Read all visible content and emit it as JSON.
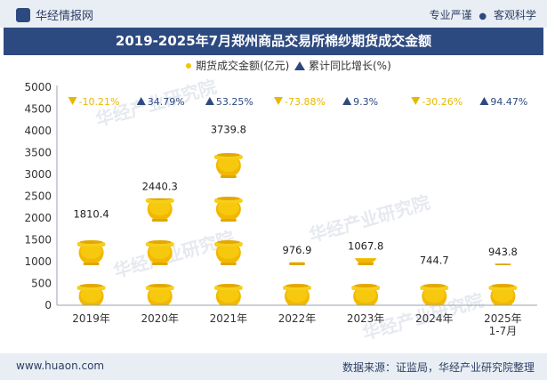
{
  "header": {
    "brand": "华经情报网",
    "tagline_left": "专业严谨",
    "tagline_right": "客观科学"
  },
  "footer": {
    "website": "www.huaon.com",
    "source": "数据来源：证监局，华经产业研究院整理"
  },
  "colors": {
    "bar_gold": "#f5c400",
    "growth_up": "#2d4a80",
    "growth_down": "#e8b800",
    "title_bg": "#2d4a80"
  },
  "chart_data": {
    "type": "bar",
    "title": "2019-2025年7月郑州商品交易所棉纱期货成交金额",
    "categories": [
      "2019年",
      "2020年",
      "2021年",
      "2022年",
      "2023年",
      "2024年",
      "2025年\n1-7月"
    ],
    "series": [
      {
        "name": "期货成交金额(亿元)",
        "values": [
          1810.4,
          2440.3,
          3739.8,
          976.9,
          1067.8,
          744.7,
          943.8
        ],
        "labels": [
          "1810.4",
          "2440.3",
          "3739.8",
          "976.9",
          "1067.8",
          "744.7",
          "943.8"
        ]
      },
      {
        "name": "累计同比增长(%)",
        "values": [
          -10.21,
          34.79,
          53.25,
          -73.88,
          9.3,
          -30.26,
          94.47
        ],
        "labels": [
          "-10.21%",
          "34.79%",
          "53.25%",
          "-73.88%",
          "9.3%",
          "-30.26%",
          "94.47%"
        ]
      }
    ],
    "ylim": [
      0,
      5000
    ],
    "yticks": [
      0,
      500,
      1000,
      1500,
      2000,
      2500,
      3000,
      3500,
      4000,
      4500,
      5000
    ],
    "unit_per_icon": 500,
    "legend": [
      "期货成交金额(亿元)",
      "累计同比增长(%)"
    ],
    "watermark": [
      "华经产业研究院",
      "www.huaon.com"
    ]
  }
}
